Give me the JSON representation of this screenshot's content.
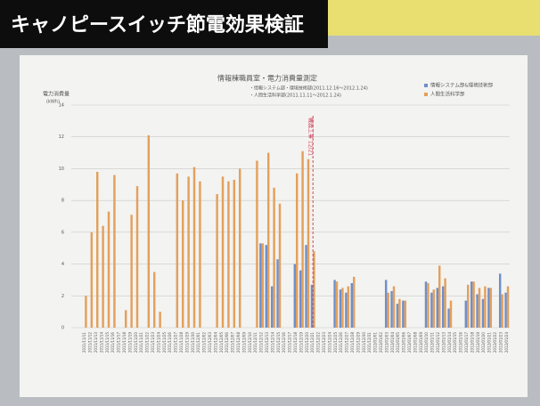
{
  "banner": "キャノピースイッチ節電効果検証",
  "chart_data": {
    "type": "bar",
    "title": "情報棟職員室・電力消費量測定",
    "subtitle": [
      "・情報システム部・環境技術部(2011.12.16〜2012.1.24)",
      "・人間生活科学部(2011.11.11〜2012.1.24)"
    ],
    "ylabel": [
      "電力消費量",
      "(kWh)"
    ],
    "categories": [
      "2011/11/11",
      "2011/11/12",
      "2011/11/13",
      "2011/11/14",
      "2011/11/15",
      "2011/11/16",
      "2011/11/17",
      "2011/11/18",
      "2011/11/19",
      "2011/11/20",
      "2011/11/21",
      "2011/11/22",
      "2011/11/23",
      "2011/11/24",
      "2011/11/25",
      "2011/11/26",
      "2011/11/27",
      "2011/11/28",
      "2011/11/29",
      "2011/11/30",
      "2011/12/01",
      "2011/12/02",
      "2011/12/03",
      "2011/12/04",
      "2011/12/05",
      "2011/12/06",
      "2011/12/07",
      "2011/12/08",
      "2011/12/09",
      "2011/12/10",
      "2011/12/11",
      "2011/12/12",
      "2011/12/13",
      "2011/12/14",
      "2011/12/15",
      "2011/12/16",
      "2011/12/17",
      "2011/12/18",
      "2011/12/19",
      "2011/12/20",
      "2011/12/21",
      "2011/12/22",
      "2011/12/23",
      "2011/12/24",
      "2011/12/25",
      "2011/12/26",
      "2011/12/27",
      "2011/12/28",
      "2011/12/29",
      "2011/12/30",
      "2011/12/31",
      "2012/01/01",
      "2012/01/02",
      "2012/01/03",
      "2012/01/04",
      "2012/01/05",
      "2012/01/06",
      "2012/01/07",
      "2012/01/08",
      "2012/01/09",
      "2012/01/10",
      "2012/01/11",
      "2012/01/12",
      "2012/01/13",
      "2012/01/14",
      "2012/01/15",
      "2012/01/16",
      "2012/01/17",
      "2012/01/18",
      "2012/01/19",
      "2012/01/20",
      "2012/01/21",
      "2012/01/22",
      "2012/01/23",
      "2012/01/24"
    ],
    "series": [
      {
        "name": "情報システム部&環境技術部",
        "color": "#6f8fc9",
        "values": [
          null,
          null,
          null,
          null,
          null,
          null,
          null,
          null,
          null,
          null,
          null,
          null,
          null,
          null,
          null,
          null,
          null,
          null,
          null,
          null,
          null,
          null,
          null,
          null,
          null,
          null,
          null,
          null,
          null,
          null,
          null,
          5.3,
          5.2,
          2.6,
          4.3,
          null,
          null,
          4,
          3.6,
          5.2,
          2.7,
          null,
          null,
          null,
          3,
          2.4,
          2.2,
          2.8,
          null,
          null,
          null,
          null,
          null,
          3,
          2.3,
          1.5,
          1.7,
          null,
          null,
          null,
          2.9,
          2.2,
          2.5,
          2.6,
          1.2,
          null,
          null,
          1.7,
          2.9,
          2.1,
          1.8,
          2.5,
          null,
          3.4,
          2.2
        ]
      },
      {
        "name": "人間生活科学部",
        "color": "#e3a05c",
        "values": [
          2,
          6,
          9.8,
          6.4,
          7.3,
          9.6,
          null,
          1.1,
          7.1,
          8.9,
          null,
          12.1,
          3.5,
          1,
          null,
          null,
          9.7,
          8,
          9.5,
          10.1,
          9.2,
          null,
          null,
          8.4,
          9.5,
          9.2,
          9.3,
          10,
          null,
          null,
          10.5,
          5.3,
          11,
          8.8,
          7.8,
          null,
          null,
          9.7,
          11.1,
          10.6,
          4.8,
          null,
          null,
          null,
          2.9,
          2.5,
          2.6,
          3.2,
          null,
          null,
          null,
          null,
          null,
          2.2,
          2.6,
          1.8,
          1.7,
          null,
          null,
          null,
          2.8,
          2.4,
          3.9,
          3.1,
          1.7,
          null,
          null,
          2.7,
          2.9,
          2.5,
          2.6,
          2.5,
          null,
          2.1,
          2.6
        ]
      }
    ],
    "annotation": {
      "text": "機器工事 12/21",
      "x": "2011/12/21",
      "color": "#d0455a"
    },
    "ylim": [
      0,
      14
    ],
    "yticks": [
      0,
      2,
      4,
      6,
      8,
      10,
      12,
      14
    ],
    "grid": true,
    "legend": "top-right"
  }
}
